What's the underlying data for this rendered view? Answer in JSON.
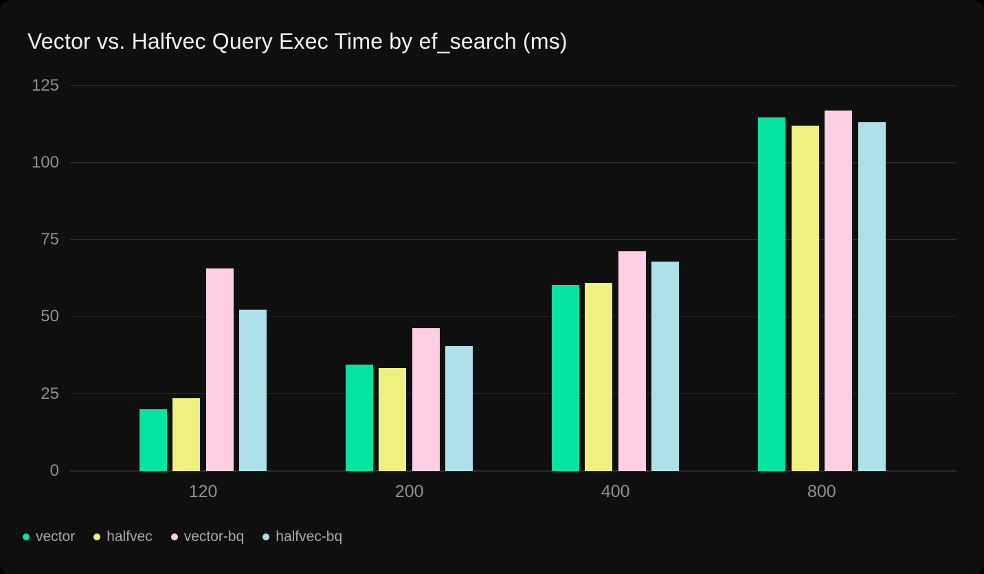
{
  "header": {
    "title": "Vector vs. Halfvec Query Exec Time by ef_search (ms)"
  },
  "chart_data": {
    "type": "bar",
    "title": "Vector vs. Halfvec Query Exec Time by ef_search (ms)",
    "categories": [
      "120",
      "200",
      "400",
      "800"
    ],
    "series": [
      {
        "name": "vector",
        "color": "#07e3a0",
        "values": [
          20.1,
          34.4,
          60.3,
          114.6
        ]
      },
      {
        "name": "halfvec",
        "color": "#eef17d",
        "values": [
          23.6,
          33.4,
          61.1,
          112.0
        ]
      },
      {
        "name": "vector-bq",
        "color": "#ffcee5",
        "values": [
          65.6,
          46.4,
          71.2,
          116.8
        ]
      },
      {
        "name": "halfvec-bq",
        "color": "#aee0ea",
        "values": [
          52.3,
          40.6,
          67.8,
          113.2
        ]
      }
    ],
    "xlabel": "",
    "ylabel": "",
    "ylim": [
      0,
      125
    ],
    "yticks": [
      0,
      25,
      50,
      75,
      100,
      125
    ],
    "grid": true,
    "legend_position": "bottom-left"
  },
  "colors": {
    "page_background": "#000000",
    "card_background": "#0f0f0f",
    "gridline": "#2a2a2a",
    "axis_text": "#8f8f94",
    "legend_text": "#a9a9ad",
    "title_text": "#f2f2f4"
  }
}
